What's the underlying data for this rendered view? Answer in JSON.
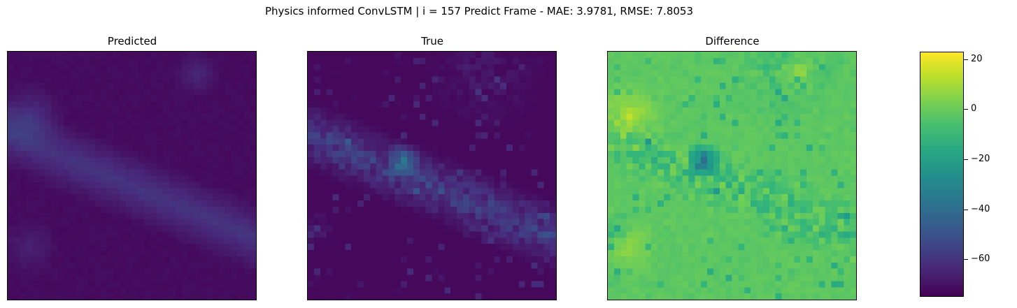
{
  "title": "Physics informed ConvLSTM | i = 157 Predict Frame - MAE: 3.9781, RMSE: 7.8053",
  "panels": [
    {
      "title": "Predicted"
    },
    {
      "title": "True"
    },
    {
      "title": "Difference"
    }
  ],
  "colorbar": {
    "tick_labels": [
      "20",
      "0",
      "−20",
      "−40",
      "−60"
    ],
    "ticks": [
      20,
      0,
      -20,
      -40,
      -60
    ],
    "range": [
      -75,
      23
    ],
    "colormap": "viridis"
  },
  "chart_data": {
    "type": "heatmap",
    "title": "Physics informed ConvLSTM | i = 157 Predict Frame - MAE: 3.9781, RMSE: 7.8053",
    "subplots": [
      "Predicted",
      "True",
      "Difference"
    ],
    "grid_size": [
      40,
      40
    ],
    "color_range": [
      -75,
      23
    ],
    "metrics": {
      "i": 157,
      "MAE": 3.9781,
      "RMSE": 7.8053
    }
  }
}
